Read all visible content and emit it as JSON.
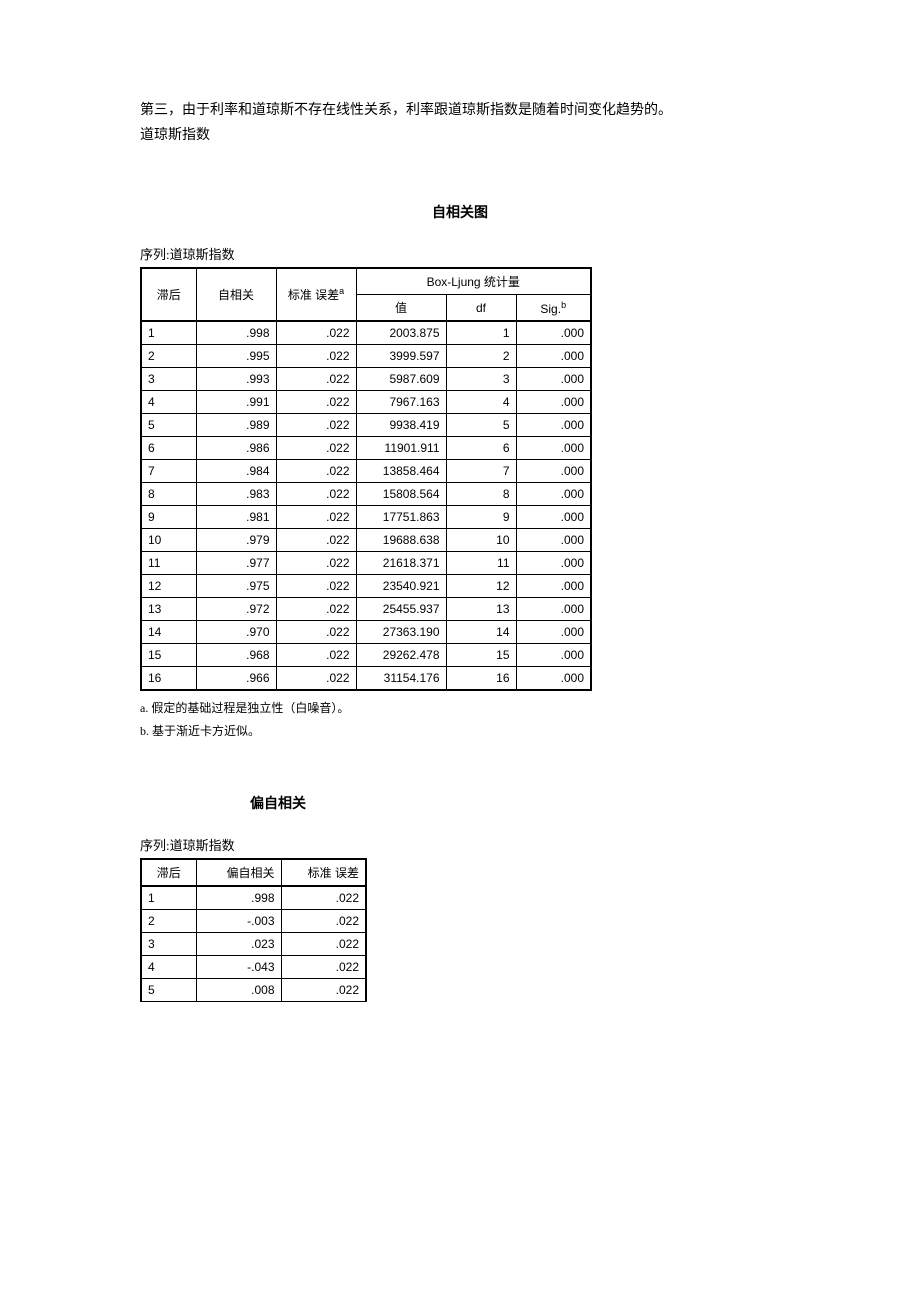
{
  "intro": {
    "line1": "第三，由于利率和道琼斯不存在线性关系，利率跟道琼斯指数是随着时间变化趋势的。",
    "line2": "道琼斯指数"
  },
  "section1": {
    "title": "自相关图",
    "series": "序列:道琼斯指数",
    "group_header": "Box-Ljung 统计量",
    "headers": {
      "lag": "滞后",
      "ac": "自相关",
      "se": "标准 误差",
      "se_sup": "a",
      "val": "值",
      "df": "df",
      "sig": "Sig.",
      "sig_sup": "b"
    },
    "rows": [
      {
        "lag": "1",
        "ac": ".998",
        "se": ".022",
        "val": "2003.875",
        "df": "1",
        "sig": ".000"
      },
      {
        "lag": "2",
        "ac": ".995",
        "se": ".022",
        "val": "3999.597",
        "df": "2",
        "sig": ".000"
      },
      {
        "lag": "3",
        "ac": ".993",
        "se": ".022",
        "val": "5987.609",
        "df": "3",
        "sig": ".000"
      },
      {
        "lag": "4",
        "ac": ".991",
        "se": ".022",
        "val": "7967.163",
        "df": "4",
        "sig": ".000"
      },
      {
        "lag": "5",
        "ac": ".989",
        "se": ".022",
        "val": "9938.419",
        "df": "5",
        "sig": ".000"
      },
      {
        "lag": "6",
        "ac": ".986",
        "se": ".022",
        "val": "11901.911",
        "df": "6",
        "sig": ".000"
      },
      {
        "lag": "7",
        "ac": ".984",
        "se": ".022",
        "val": "13858.464",
        "df": "7",
        "sig": ".000"
      },
      {
        "lag": "8",
        "ac": ".983",
        "se": ".022",
        "val": "15808.564",
        "df": "8",
        "sig": ".000"
      },
      {
        "lag": "9",
        "ac": ".981",
        "se": ".022",
        "val": "17751.863",
        "df": "9",
        "sig": ".000"
      },
      {
        "lag": "10",
        "ac": ".979",
        "se": ".022",
        "val": "19688.638",
        "df": "10",
        "sig": ".000"
      },
      {
        "lag": "11",
        "ac": ".977",
        "se": ".022",
        "val": "21618.371",
        "df": "11",
        "sig": ".000"
      },
      {
        "lag": "12",
        "ac": ".975",
        "se": ".022",
        "val": "23540.921",
        "df": "12",
        "sig": ".000"
      },
      {
        "lag": "13",
        "ac": ".972",
        "se": ".022",
        "val": "25455.937",
        "df": "13",
        "sig": ".000"
      },
      {
        "lag": "14",
        "ac": ".970",
        "se": ".022",
        "val": "27363.190",
        "df": "14",
        "sig": ".000"
      },
      {
        "lag": "15",
        "ac": ".968",
        "se": ".022",
        "val": "29262.478",
        "df": "15",
        "sig": ".000"
      },
      {
        "lag": "16",
        "ac": ".966",
        "se": ".022",
        "val": "31154.176",
        "df": "16",
        "sig": ".000"
      }
    ],
    "footnotes": {
      "a": "a. 假定的基础过程是独立性（白噪音）。",
      "b": "b. 基于渐近卡方近似。"
    }
  },
  "section2": {
    "title": "偏自相关",
    "series": "序列:道琼斯指数",
    "headers": {
      "lag": "滞后",
      "pac": "偏自相关",
      "se": "标准 误差"
    },
    "rows": [
      {
        "lag": "1",
        "pac": ".998",
        "se": ".022"
      },
      {
        "lag": "2",
        "pac": "-.003",
        "se": ".022"
      },
      {
        "lag": "3",
        "pac": ".023",
        "se": ".022"
      },
      {
        "lag": "4",
        "pac": "-.043",
        "se": ".022"
      },
      {
        "lag": "5",
        "pac": ".008",
        "se": ".022"
      }
    ]
  }
}
